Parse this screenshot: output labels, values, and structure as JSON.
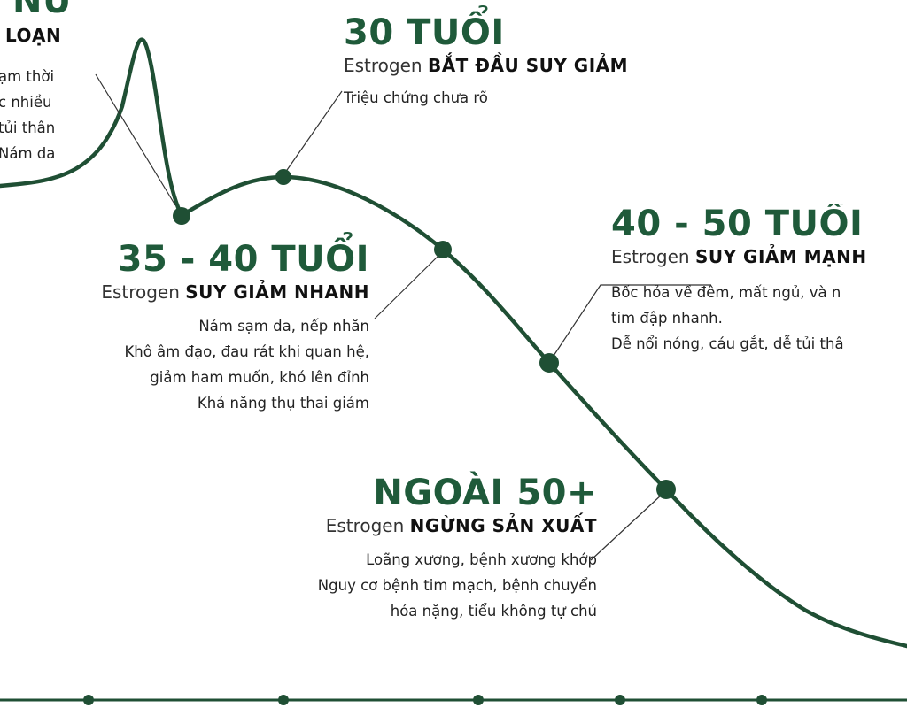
{
  "colors": {
    "curve": "#1f4f34",
    "heading": "#1f5a3a",
    "leader": "#333333"
  },
  "stages": {
    "teen": {
      "heading_partial": "NỮ",
      "sub_partial": "LOẠN",
      "lines_partial": [
        "ạm thời",
        "c nhiều",
        "tủi thân",
        "Nám da"
      ]
    },
    "age30": {
      "heading": "30 TUỔI",
      "sub_prefix": "Estrogen",
      "sub_bold": "BẮT ĐẦU SUY GIẢM",
      "lines": [
        "Triệu chứng chưa rõ"
      ]
    },
    "age35": {
      "heading": "35 - 40 TUỔI",
      "sub_prefix": "Estrogen",
      "sub_bold": "SUY GIẢM NHANH",
      "lines": [
        "Nám sạm da, nếp nhăn",
        "Khô âm đạo, đau rát khi quan hệ,",
        "giảm ham muốn, khó lên đỉnh",
        "Khả năng thụ thai giảm"
      ]
    },
    "age40": {
      "heading": "40 - 50 TUỔI",
      "sub_prefix": "Estrogen",
      "sub_bold": "SUY GIẢM MẠNH",
      "lines": [
        "Bốc hỏa về đêm, mất ngủ, và n",
        "tim đập nhanh.",
        "Dễ nổi nóng, cáu gắt, dễ tủi thâ"
      ]
    },
    "age50": {
      "heading": "NGOÀI 50+",
      "sub_prefix": "Estrogen",
      "sub_bold": "NGỪNG SẢN XUẤT",
      "lines": [
        "Loãng xương, bệnh xương khớp",
        "Nguy cơ bệnh tim mạch, bệnh chuyển",
        "hóa nặng, tiểu không tự chủ"
      ]
    }
  }
}
